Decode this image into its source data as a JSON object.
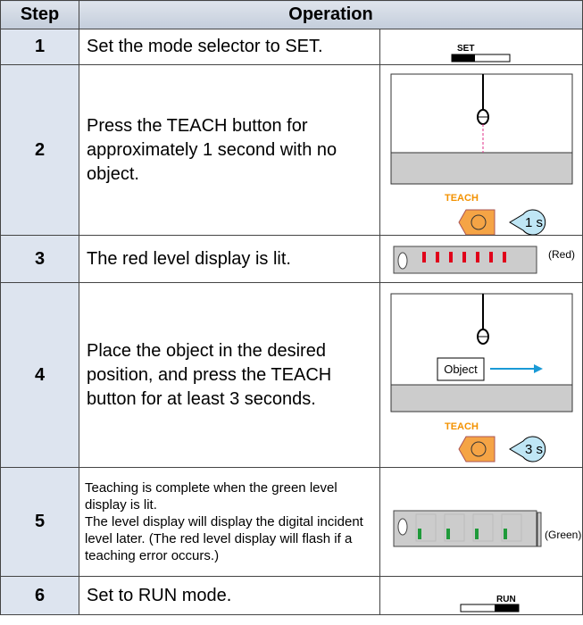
{
  "table": {
    "header": [
      "Step",
      "Operation"
    ],
    "rows": [
      {
        "step": "1",
        "operation": "Set the mode selector to SET.",
        "figure": [
          "SET"
        ]
      },
      {
        "step": "2",
        "operation": "Press the TEACH button for approximately 1 second with no object.",
        "figure": [
          "TEACH",
          "1 s"
        ]
      },
      {
        "step": "3",
        "operation": "The red level display is lit.",
        "figure": [
          "(Red)"
        ]
      },
      {
        "step": "4",
        "operation": "Place the object in the desired position, and press the TEACH button for at least 3 seconds.",
        "figure": [
          "Object",
          "TEACH",
          "3 s"
        ]
      },
      {
        "step": "5",
        "operation": "Teaching is complete when the green level display is lit.",
        "note": "The level display will display the digital incident level later. (The red level display will flash if a teaching error occurs.)",
        "figure": [
          "(Green)"
        ]
      },
      {
        "step": "6",
        "operation": "Set to RUN mode.",
        "figure": [
          "RUN"
        ]
      }
    ]
  }
}
